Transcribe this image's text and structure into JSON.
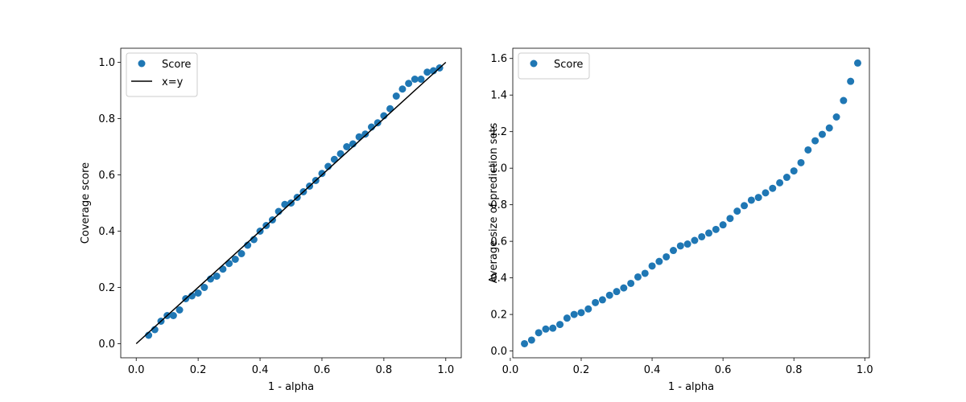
{
  "chart_data": [
    {
      "type": "scatter",
      "xlabel": "1 - alpha",
      "ylabel": "Coverage score",
      "xlim": [
        -0.05,
        1.05
      ],
      "ylim": [
        -0.05,
        1.05
      ],
      "xticks": [
        "0.0",
        "0.2",
        "0.4",
        "0.6",
        "0.8",
        "1.0"
      ],
      "yticks": [
        "0.0",
        "0.2",
        "0.4",
        "0.6",
        "0.8",
        "1.0"
      ],
      "legend_position": "top-left",
      "grid": false,
      "series": [
        {
          "name": "Score",
          "kind": "scatter",
          "color": "#1f77b4",
          "x": [
            0.04,
            0.06,
            0.08,
            0.1,
            0.12,
            0.14,
            0.16,
            0.18,
            0.2,
            0.22,
            0.24,
            0.26,
            0.28,
            0.3,
            0.32,
            0.34,
            0.36,
            0.38,
            0.4,
            0.42,
            0.44,
            0.46,
            0.48,
            0.5,
            0.52,
            0.54,
            0.56,
            0.58,
            0.6,
            0.62,
            0.64,
            0.66,
            0.68,
            0.7,
            0.72,
            0.74,
            0.76,
            0.78,
            0.8,
            0.82,
            0.84,
            0.86,
            0.88,
            0.9,
            0.92,
            0.94,
            0.96,
            0.98
          ],
          "y": [
            0.03,
            0.05,
            0.08,
            0.1,
            0.1,
            0.12,
            0.16,
            0.17,
            0.18,
            0.2,
            0.23,
            0.24,
            0.265,
            0.285,
            0.3,
            0.32,
            0.35,
            0.37,
            0.4,
            0.42,
            0.44,
            0.47,
            0.495,
            0.5,
            0.52,
            0.54,
            0.56,
            0.58,
            0.605,
            0.63,
            0.655,
            0.675,
            0.7,
            0.71,
            0.735,
            0.745,
            0.77,
            0.785,
            0.81,
            0.835,
            0.88,
            0.905,
            0.925,
            0.94,
            0.94,
            0.965,
            0.97,
            0.98
          ]
        },
        {
          "name": "x=y",
          "kind": "line",
          "color": "#000000",
          "x": [
            0,
            1
          ],
          "y": [
            0,
            1
          ]
        }
      ]
    },
    {
      "type": "scatter",
      "xlabel": "1 - alpha",
      "ylabel": "Average size of prediction sets",
      "xlim": [
        0.007,
        1.013
      ],
      "ylim": [
        -0.037,
        1.656
      ],
      "xticks": [
        "0.0",
        "0.2",
        "0.4",
        "0.6",
        "0.8",
        "1.0"
      ],
      "yticks": [
        "0.0",
        "0.2",
        "0.4",
        "0.6",
        "0.8",
        "1.0",
        "1.2",
        "1.4",
        "1.6"
      ],
      "legend_position": "top-left",
      "grid": false,
      "series": [
        {
          "name": "Score",
          "kind": "scatter",
          "color": "#1f77b4",
          "x": [
            0.04,
            0.06,
            0.08,
            0.1,
            0.12,
            0.14,
            0.16,
            0.18,
            0.2,
            0.22,
            0.24,
            0.26,
            0.28,
            0.3,
            0.32,
            0.34,
            0.36,
            0.38,
            0.4,
            0.42,
            0.44,
            0.46,
            0.48,
            0.5,
            0.52,
            0.54,
            0.56,
            0.58,
            0.6,
            0.62,
            0.64,
            0.66,
            0.68,
            0.7,
            0.72,
            0.74,
            0.76,
            0.78,
            0.8,
            0.82,
            0.84,
            0.86,
            0.88,
            0.9,
            0.92,
            0.94,
            0.96,
            0.98
          ],
          "y": [
            0.04,
            0.06,
            0.1,
            0.12,
            0.125,
            0.145,
            0.18,
            0.2,
            0.21,
            0.23,
            0.265,
            0.28,
            0.305,
            0.325,
            0.345,
            0.37,
            0.405,
            0.425,
            0.465,
            0.49,
            0.515,
            0.55,
            0.575,
            0.585,
            0.605,
            0.625,
            0.645,
            0.665,
            0.69,
            0.725,
            0.765,
            0.795,
            0.825,
            0.84,
            0.865,
            0.89,
            0.92,
            0.95,
            0.985,
            1.03,
            1.1,
            1.15,
            1.185,
            1.22,
            1.28,
            1.37,
            1.475,
            1.575
          ]
        }
      ]
    }
  ]
}
